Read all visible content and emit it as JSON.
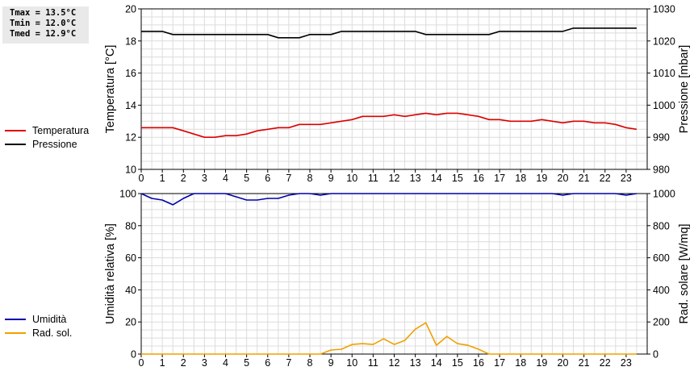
{
  "stats": {
    "tmax": "Tmax = 13.5°C",
    "tmin": "Tmin = 12.0°C",
    "tmed": "Tmed = 12.9°C"
  },
  "legend_top": [
    {
      "label": "Temperatura",
      "color": "#dd0000"
    },
    {
      "label": "Pressione",
      "color": "#000000"
    }
  ],
  "legend_bottom": [
    {
      "label": "Umidità",
      "color": "#0000aa"
    },
    {
      "label": "Rad. sol.",
      "color": "#f0a000"
    }
  ],
  "chart_data": [
    {
      "type": "line",
      "x_ticks": [
        0,
        1,
        2,
        3,
        4,
        5,
        6,
        7,
        8,
        9,
        10,
        11,
        12,
        13,
        14,
        15,
        16,
        17,
        18,
        19,
        20,
        21,
        22,
        23
      ],
      "xlim": [
        0,
        24
      ],
      "ylabel_left": "Temperatura [°C]",
      "ylim_left": [
        10,
        20
      ],
      "yticks_left": [
        10,
        12,
        14,
        16,
        18,
        20
      ],
      "ylabel_right": "Pressione [mbar]",
      "ylim_right": [
        980,
        1030
      ],
      "yticks_right": [
        980,
        990,
        1000,
        1010,
        1020,
        1030
      ],
      "grid": true,
      "series": [
        {
          "name": "Temperatura",
          "axis": "left",
          "color": "#dd0000",
          "x": [
            0,
            0.5,
            1,
            1.5,
            2,
            2.5,
            3,
            3.5,
            4,
            4.5,
            5,
            5.5,
            6,
            6.5,
            7,
            7.5,
            8,
            8.5,
            9,
            9.5,
            10,
            10.5,
            11,
            11.5,
            12,
            12.5,
            13,
            13.5,
            14,
            14.5,
            15,
            15.5,
            16,
            16.5,
            17,
            17.5,
            18,
            18.5,
            19,
            19.5,
            20,
            20.5,
            21,
            21.5,
            22,
            22.5,
            23,
            23.5
          ],
          "y": [
            12.6,
            12.6,
            12.6,
            12.6,
            12.4,
            12.2,
            12.0,
            12.0,
            12.1,
            12.1,
            12.2,
            12.4,
            12.5,
            12.6,
            12.6,
            12.8,
            12.8,
            12.8,
            12.9,
            13.0,
            13.1,
            13.3,
            13.3,
            13.3,
            13.4,
            13.3,
            13.4,
            13.5,
            13.4,
            13.5,
            13.5,
            13.4,
            13.3,
            13.1,
            13.1,
            13.0,
            13.0,
            13.0,
            13.1,
            13.0,
            12.9,
            13.0,
            13.0,
            12.9,
            12.9,
            12.8,
            12.6,
            12.5
          ]
        },
        {
          "name": "Pressione",
          "axis": "right",
          "color": "#000000",
          "x": [
            0,
            1,
            1.5,
            2,
            3,
            4,
            5,
            6,
            6.5,
            7,
            7.5,
            8,
            9,
            9.5,
            10,
            11,
            12,
            13,
            13.5,
            14,
            15,
            16,
            16.5,
            17,
            18,
            19,
            20,
            20.5,
            21,
            22,
            23,
            23.5
          ],
          "y": [
            1023,
            1023,
            1022,
            1022,
            1022,
            1022,
            1022,
            1022,
            1021,
            1021,
            1021,
            1022,
            1022,
            1023,
            1023,
            1023,
            1023,
            1023,
            1022,
            1022,
            1022,
            1022,
            1022,
            1023,
            1023,
            1023,
            1023,
            1024,
            1024,
            1024,
            1024,
            1024
          ]
        }
      ]
    },
    {
      "type": "line",
      "x_ticks": [
        0,
        1,
        2,
        3,
        4,
        5,
        6,
        7,
        8,
        9,
        10,
        11,
        12,
        13,
        14,
        15,
        16,
        17,
        18,
        19,
        20,
        21,
        22,
        23
      ],
      "xlim": [
        0,
        24
      ],
      "ylabel_left": "Umidità relativa [%]",
      "ylim_left": [
        0,
        100
      ],
      "yticks_left": [
        0,
        20,
        40,
        60,
        80,
        100
      ],
      "ylabel_right": "Rad. solare [W/mq]",
      "ylim_right": [
        0,
        1000
      ],
      "yticks_right": [
        0,
        200,
        400,
        600,
        800,
        1000
      ],
      "grid": true,
      "series": [
        {
          "name": "Umidità",
          "axis": "left",
          "color": "#0000aa",
          "x": [
            0,
            0.5,
            1,
            1.5,
            2,
            2.5,
            3,
            3.5,
            4,
            4.5,
            5,
            5.5,
            6,
            6.5,
            7,
            7.5,
            8,
            8.5,
            9,
            9.5,
            10,
            11,
            12,
            13,
            14,
            15,
            16,
            17,
            18,
            19,
            19.5,
            20,
            20.5,
            21,
            22,
            22.5,
            23,
            23.5
          ],
          "y": [
            100,
            97,
            96,
            93,
            97,
            100,
            100,
            100,
            100,
            98,
            96,
            96,
            97,
            97,
            99,
            100,
            100,
            99,
            100,
            100,
            100,
            100,
            100,
            100,
            100,
            100,
            100,
            100,
            100,
            100,
            100,
            99,
            100,
            100,
            100,
            100,
            99,
            100
          ]
        },
        {
          "name": "Rad. sol.",
          "axis": "right",
          "color": "#f0a000",
          "x": [
            0,
            1,
            2,
            3,
            4,
            5,
            6,
            7,
            8,
            8.5,
            9,
            9.5,
            10,
            10.5,
            11,
            11.5,
            12,
            12.5,
            13,
            13.5,
            14,
            14.5,
            15,
            15.5,
            16,
            16.5,
            17,
            18,
            19,
            20,
            21,
            22,
            23,
            23.5
          ],
          "y": [
            0,
            0,
            0,
            0,
            0,
            0,
            0,
            0,
            0,
            0,
            25,
            30,
            60,
            65,
            60,
            95,
            60,
            85,
            155,
            195,
            55,
            110,
            65,
            55,
            30,
            0,
            0,
            0,
            0,
            0,
            0,
            0,
            0,
            0
          ]
        }
      ]
    }
  ]
}
